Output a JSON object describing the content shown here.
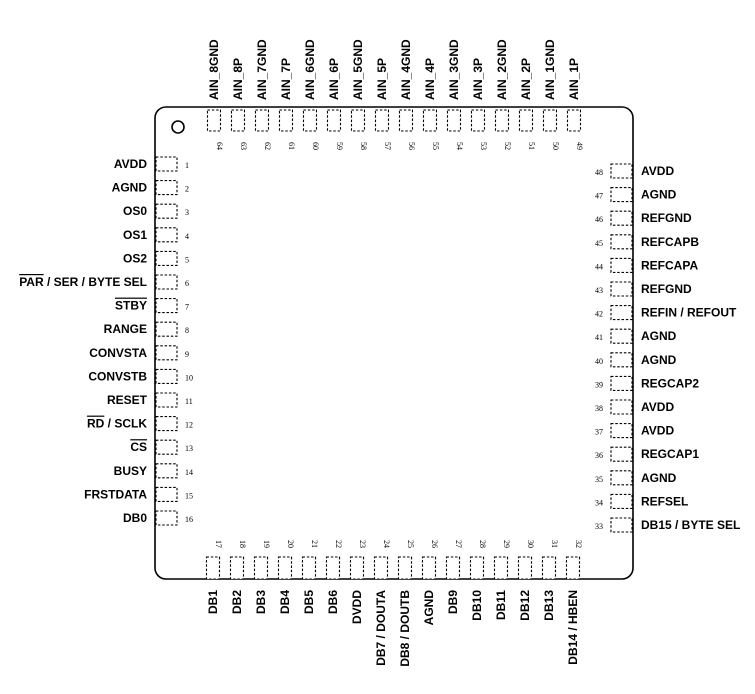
{
  "pins": {
    "left": [
      {
        "num": "1",
        "label": "AVDD"
      },
      {
        "num": "2",
        "label": "AGND"
      },
      {
        "num": "3",
        "label": "OS0"
      },
      {
        "num": "4",
        "label": "OS1"
      },
      {
        "num": "5",
        "label": "OS2"
      },
      {
        "num": "6",
        "label": "PAR / SER / BYTE SEL",
        "overline": "PAR"
      },
      {
        "num": "7",
        "label": "STBY",
        "overline": "STBY"
      },
      {
        "num": "8",
        "label": "RANGE"
      },
      {
        "num": "9",
        "label": "CONVSTA"
      },
      {
        "num": "10",
        "label": "CONVSTB"
      },
      {
        "num": "11",
        "label": "RESET"
      },
      {
        "num": "12",
        "label": "RD / SCLK",
        "overline": "RD"
      },
      {
        "num": "13",
        "label": "CS",
        "overline": "CS"
      },
      {
        "num": "14",
        "label": "BUSY"
      },
      {
        "num": "15",
        "label": "FRSTDATA"
      },
      {
        "num": "16",
        "label": "DB0"
      }
    ],
    "bottom": [
      {
        "num": "17",
        "label": "DB1"
      },
      {
        "num": "18",
        "label": "DB2"
      },
      {
        "num": "19",
        "label": "DB3"
      },
      {
        "num": "20",
        "label": "DB4"
      },
      {
        "num": "21",
        "label": "DB5"
      },
      {
        "num": "22",
        "label": "DB6"
      },
      {
        "num": "23",
        "label": "DVDD"
      },
      {
        "num": "24",
        "label": "DB7 / DOUTA"
      },
      {
        "num": "25",
        "label": "DB8 / DOUTB"
      },
      {
        "num": "26",
        "label": "AGND"
      },
      {
        "num": "27",
        "label": "DB9"
      },
      {
        "num": "28",
        "label": "DB10"
      },
      {
        "num": "29",
        "label": "DB11"
      },
      {
        "num": "30",
        "label": "DB12"
      },
      {
        "num": "31",
        "label": "DB13"
      },
      {
        "num": "32",
        "label": "DB14 / HBEN"
      }
    ],
    "right": [
      {
        "num": "33",
        "label": "DB15 / BYTE SEL"
      },
      {
        "num": "34",
        "label": "REFSEL"
      },
      {
        "num": "35",
        "label": "AGND"
      },
      {
        "num": "36",
        "label": "REGCAP1"
      },
      {
        "num": "37",
        "label": "AVDD"
      },
      {
        "num": "38",
        "label": "AVDD"
      },
      {
        "num": "39",
        "label": "REGCAP2"
      },
      {
        "num": "40",
        "label": "AGND"
      },
      {
        "num": "41",
        "label": "AGND"
      },
      {
        "num": "42",
        "label": "REFIN / REFOUT"
      },
      {
        "num": "43",
        "label": "REFGND"
      },
      {
        "num": "44",
        "label": "REFCAPA"
      },
      {
        "num": "45",
        "label": "REFCAPB"
      },
      {
        "num": "46",
        "label": "REFGND"
      },
      {
        "num": "47",
        "label": "AGND"
      },
      {
        "num": "48",
        "label": "AVDD"
      }
    ],
    "top": [
      {
        "num": "49",
        "label": "AIN_1P"
      },
      {
        "num": "50",
        "label": "AIN_1GND"
      },
      {
        "num": "51",
        "label": "AIN_2P"
      },
      {
        "num": "52",
        "label": "AIN_2GND"
      },
      {
        "num": "53",
        "label": "AIN_3P"
      },
      {
        "num": "54",
        "label": "AIN_3GND"
      },
      {
        "num": "55",
        "label": "AIN_4P"
      },
      {
        "num": "56",
        "label": "AIN_4GND"
      },
      {
        "num": "57",
        "label": "AIN_5P"
      },
      {
        "num": "58",
        "label": "AIN_5GND"
      },
      {
        "num": "59",
        "label": "AIN_6P"
      },
      {
        "num": "60",
        "label": "AIN_6GND"
      },
      {
        "num": "61",
        "label": "AIN_7P"
      },
      {
        "num": "62",
        "label": "AIN_7GND"
      },
      {
        "num": "63",
        "label": "AIN_8P"
      },
      {
        "num": "64",
        "label": "AIN_8GND"
      }
    ]
  }
}
